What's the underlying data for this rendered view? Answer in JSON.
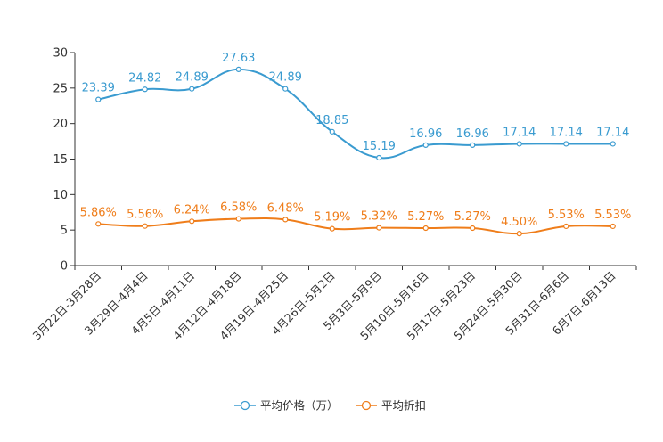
{
  "chart_data": {
    "type": "line",
    "title": "",
    "xlabel": "",
    "ylabel": "",
    "ylim": [
      0,
      30
    ],
    "yticks": [
      "0",
      "5",
      "10",
      "15",
      "20",
      "25",
      "30"
    ],
    "categories": [
      "3月22日-3月28日",
      "3月29日-4月4日",
      "4月5日-4月11日",
      "4月12日-4月18日",
      "4月19日-4月25日",
      "4月26日-5月2日",
      "5月3日-5月9日",
      "5月10日-5月16日",
      "5月17日-5月23日",
      "5月24日-5月30日",
      "5月31日-6月6日",
      "6月7日-6月13日"
    ],
    "series": [
      {
        "name": "平均价格（万）",
        "color": "#3a9bd0",
        "values": [
          23.39,
          24.82,
          24.89,
          27.63,
          24.89,
          18.85,
          15.19,
          16.96,
          16.96,
          17.14,
          17.14,
          17.14
        ],
        "labels": [
          "23.39",
          "24.82",
          "24.89",
          "27.63",
          "24.89",
          "18.85",
          "15.19",
          "16.96",
          "16.96",
          "17.14",
          "17.14",
          "17.14"
        ]
      },
      {
        "name": "平均折扣",
        "color": "#ef7d1a",
        "values": [
          5.86,
          5.56,
          6.24,
          6.58,
          6.48,
          5.19,
          5.32,
          5.27,
          5.27,
          4.5,
          5.53,
          5.53
        ],
        "labels": [
          "5.86%",
          "5.56%",
          "6.24%",
          "6.58%",
          "6.48%",
          "5.19%",
          "5.32%",
          "5.27%",
          "5.27%",
          "4.50%",
          "5.53%",
          "5.53%"
        ]
      }
    ],
    "legend": "bottom-center",
    "grid": false
  }
}
